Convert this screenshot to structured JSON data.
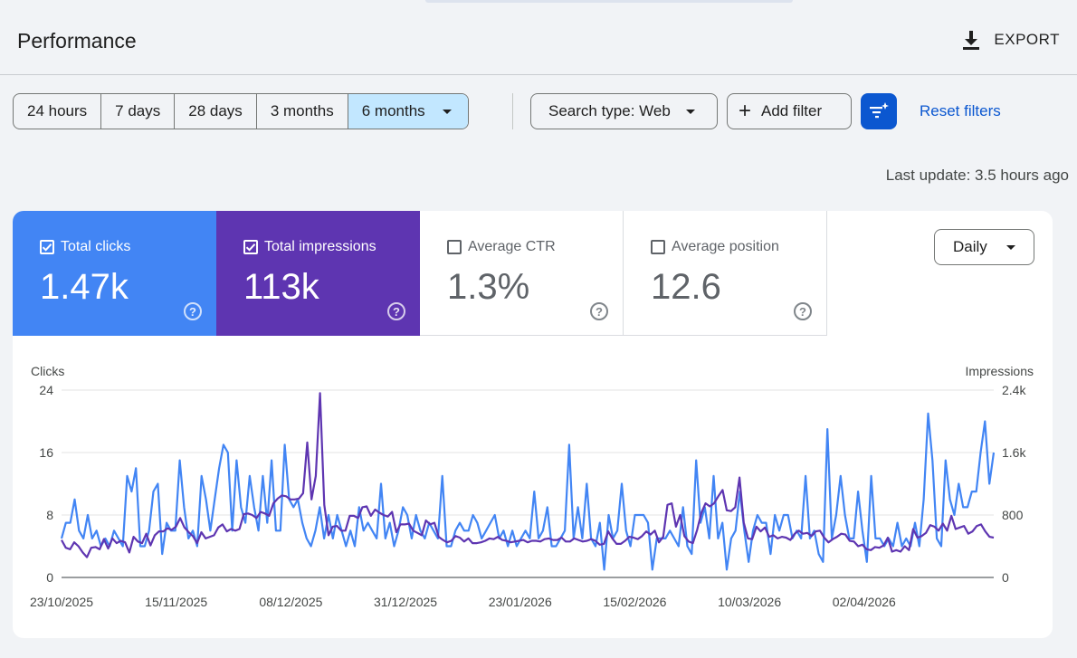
{
  "header": {
    "title": "Performance",
    "export_label": "EXPORT"
  },
  "date_range": {
    "options": [
      "24 hours",
      "7 days",
      "28 days",
      "3 months",
      "6 months"
    ],
    "selected": "6 months"
  },
  "filters": {
    "search_type_label": "Search type: Web",
    "add_filter_label": "Add filter",
    "reset_label": "Reset filters"
  },
  "last_update": "Last update: 3.5 hours ago",
  "metrics": [
    {
      "label": "Total clicks",
      "value": "1.47k",
      "checked": true,
      "color": "#4285f4"
    },
    {
      "label": "Total impressions",
      "value": "113k",
      "checked": true,
      "color": "#5e35b1"
    },
    {
      "label": "Average CTR",
      "value": "1.3%",
      "checked": false
    },
    {
      "label": "Average position",
      "value": "12.6",
      "checked": false
    }
  ],
  "granularity": "Daily",
  "chart_data": {
    "type": "line",
    "left_axis": {
      "label": "Clicks",
      "ticks": [
        "0",
        "8",
        "16",
        "24"
      ],
      "range": [
        0,
        24
      ]
    },
    "right_axis": {
      "label": "Impressions",
      "ticks": [
        "0",
        "800",
        "1.6k",
        "2.4k"
      ],
      "range": [
        0,
        2400
      ]
    },
    "x_tick_labels": [
      "23/10/2025",
      "15/11/2025",
      "08/12/2025",
      "31/12/2025",
      "23/01/2026",
      "15/02/2026",
      "10/03/2026",
      "02/04/2026"
    ],
    "x_start": "23/10/2025",
    "x_end": "28/04/2026",
    "grid": true,
    "series": [
      {
        "name": "Clicks",
        "axis": "left",
        "color": "#4285f4",
        "values": [
          5,
          7,
          7,
          10,
          6,
          5,
          8,
          5,
          6,
          4,
          5,
          4,
          6,
          5,
          4,
          13,
          11,
          14,
          4,
          4,
          6,
          11,
          12,
          3,
          7,
          6,
          6,
          15,
          9,
          5,
          6,
          4,
          13,
          10,
          6,
          10,
          14,
          17,
          16,
          6,
          15,
          9,
          7,
          13,
          9,
          6,
          13,
          7,
          15,
          6,
          6,
          17,
          10,
          9,
          10,
          7,
          5,
          4,
          6,
          9,
          5,
          8,
          5,
          8,
          6,
          4,
          6,
          4,
          9,
          6,
          7,
          6,
          5,
          12,
          5,
          7,
          4,
          6,
          9,
          8,
          5,
          8,
          6,
          5,
          7,
          6,
          5,
          13,
          4,
          4,
          6,
          7,
          6,
          6,
          8,
          7,
          5,
          6,
          7,
          8,
          5,
          6,
          4,
          6,
          4,
          5,
          6,
          5,
          11,
          5,
          6,
          9,
          4,
          4,
          5,
          6,
          17,
          5,
          9,
          5,
          12,
          5,
          4,
          7,
          1,
          8,
          5,
          6,
          12,
          6,
          4,
          8,
          8,
          8,
          7,
          1,
          5,
          5,
          5,
          6,
          5,
          4,
          9,
          4,
          3,
          15,
          7,
          9,
          5,
          13,
          5,
          7,
          1,
          5,
          6,
          11,
          6,
          2,
          6,
          8,
          7,
          7,
          3,
          8,
          6,
          8,
          8,
          5,
          6,
          5,
          13,
          5,
          6,
          3,
          2,
          19,
          5,
          8,
          13,
          8,
          5,
          5,
          11,
          6,
          2,
          13,
          5,
          5,
          4,
          5,
          4,
          7,
          4,
          5,
          4,
          7,
          4,
          10,
          21,
          15,
          5,
          4,
          15,
          10,
          8,
          12,
          9,
          9,
          11,
          11,
          16,
          20,
          12,
          16
        ]
      },
      {
        "name": "Impressions",
        "axis": "right",
        "color": "#5e35b1",
        "values": [
          480,
          380,
          360,
          450,
          400,
          320,
          260,
          380,
          390,
          360,
          490,
          370,
          500,
          440,
          470,
          450,
          320,
          520,
          460,
          440,
          560,
          410,
          540,
          590,
          590,
          630,
          610,
          650,
          760,
          640,
          580,
          530,
          440,
          580,
          500,
          520,
          540,
          640,
          680,
          590,
          620,
          600,
          620,
          810,
          820,
          800,
          760,
          840,
          820,
          790,
          950,
          1010,
          1050,
          1040,
          1000,
          1000,
          1010,
          1080,
          1730,
          1000,
          1300,
          2360,
          930,
          540,
          650,
          660,
          600,
          600,
          790,
          790,
          760,
          900,
          910,
          790,
          870,
          830,
          800,
          780,
          840,
          580,
          680,
          680,
          690,
          600,
          570,
          540,
          730,
          680,
          700,
          520,
          480,
          450,
          470,
          530,
          510,
          460,
          500,
          440,
          440,
          450,
          470,
          500,
          490,
          520,
          480,
          470,
          450,
          460,
          470,
          480,
          450,
          470,
          470,
          460,
          490,
          500,
          480,
          480,
          510,
          460,
          460,
          500,
          480,
          460,
          470,
          490,
          470,
          420,
          430,
          590,
          500,
          430,
          430,
          470,
          520,
          510,
          490,
          530,
          590,
          550,
          600,
          450,
          520,
          930,
          950,
          650,
          800,
          530,
          460,
          440,
          610,
          830,
          950,
          910,
          950,
          1040,
          1120,
          860,
          850,
          900,
          1280,
          700,
          500,
          490,
          650,
          590,
          640,
          520,
          540,
          500,
          520,
          510,
          480,
          560,
          600,
          560,
          570,
          530,
          590,
          600,
          510,
          450,
          490,
          520,
          560,
          550,
          470,
          460,
          400,
          420,
          360,
          350,
          390,
          380,
          410,
          510,
          330,
          350,
          330,
          400,
          350,
          620,
          510,
          530,
          570,
          670,
          650,
          600,
          690,
          600,
          790,
          620,
          640,
          660,
          560,
          590,
          660,
          680,
          590,
          520,
          510
        ]
      }
    ]
  }
}
